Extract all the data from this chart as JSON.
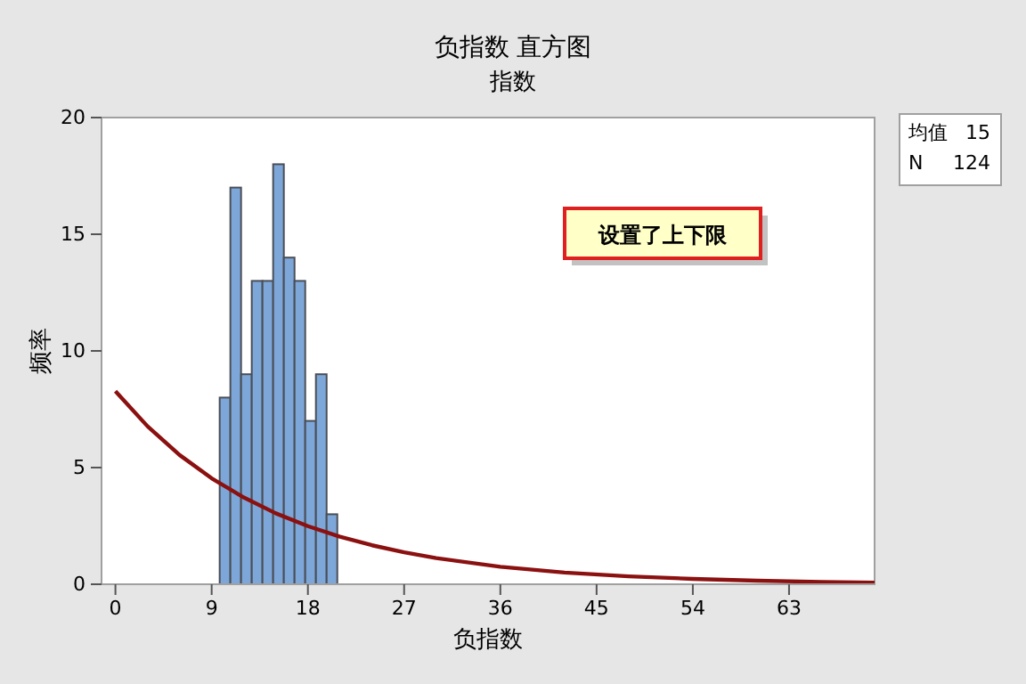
{
  "chart_data": {
    "type": "histogram",
    "title": "负指数 直方图",
    "subtitle": "指数",
    "xlabel": "负指数",
    "ylabel": "频率",
    "xlim": [
      -1.3,
      71
    ],
    "xticks": [
      0,
      9,
      18,
      27,
      36,
      45,
      54,
      63
    ],
    "ylim": [
      0,
      20
    ],
    "yticks": [
      0,
      5,
      10,
      15,
      20
    ],
    "grid": false,
    "series": [
      {
        "color": "#7da7d9",
        "bins": [
          9.75,
          10.75,
          11.75,
          12.75,
          13.75,
          14.75,
          15.75,
          16.75,
          17.75,
          18.75,
          19.75,
          20.75
        ],
        "values": [
          8,
          17,
          9,
          13,
          13,
          18,
          14,
          13,
          7,
          9,
          3
        ]
      },
      {
        "type": "line",
        "color": "#8b1010",
        "x": [
          0,
          3,
          6,
          9,
          12,
          15,
          18,
          21,
          24,
          27,
          30,
          36,
          42,
          48,
          54,
          60,
          66,
          71
        ],
        "values": [
          8.27,
          6.77,
          5.54,
          4.54,
          3.72,
          3.04,
          2.49,
          2.04,
          1.67,
          1.37,
          1.12,
          0.75,
          0.5,
          0.34,
          0.23,
          0.15,
          0.1,
          0.07
        ]
      }
    ],
    "annotations": [
      "设置了上下限",
      "均值 15",
      "N 124"
    ]
  }
}
